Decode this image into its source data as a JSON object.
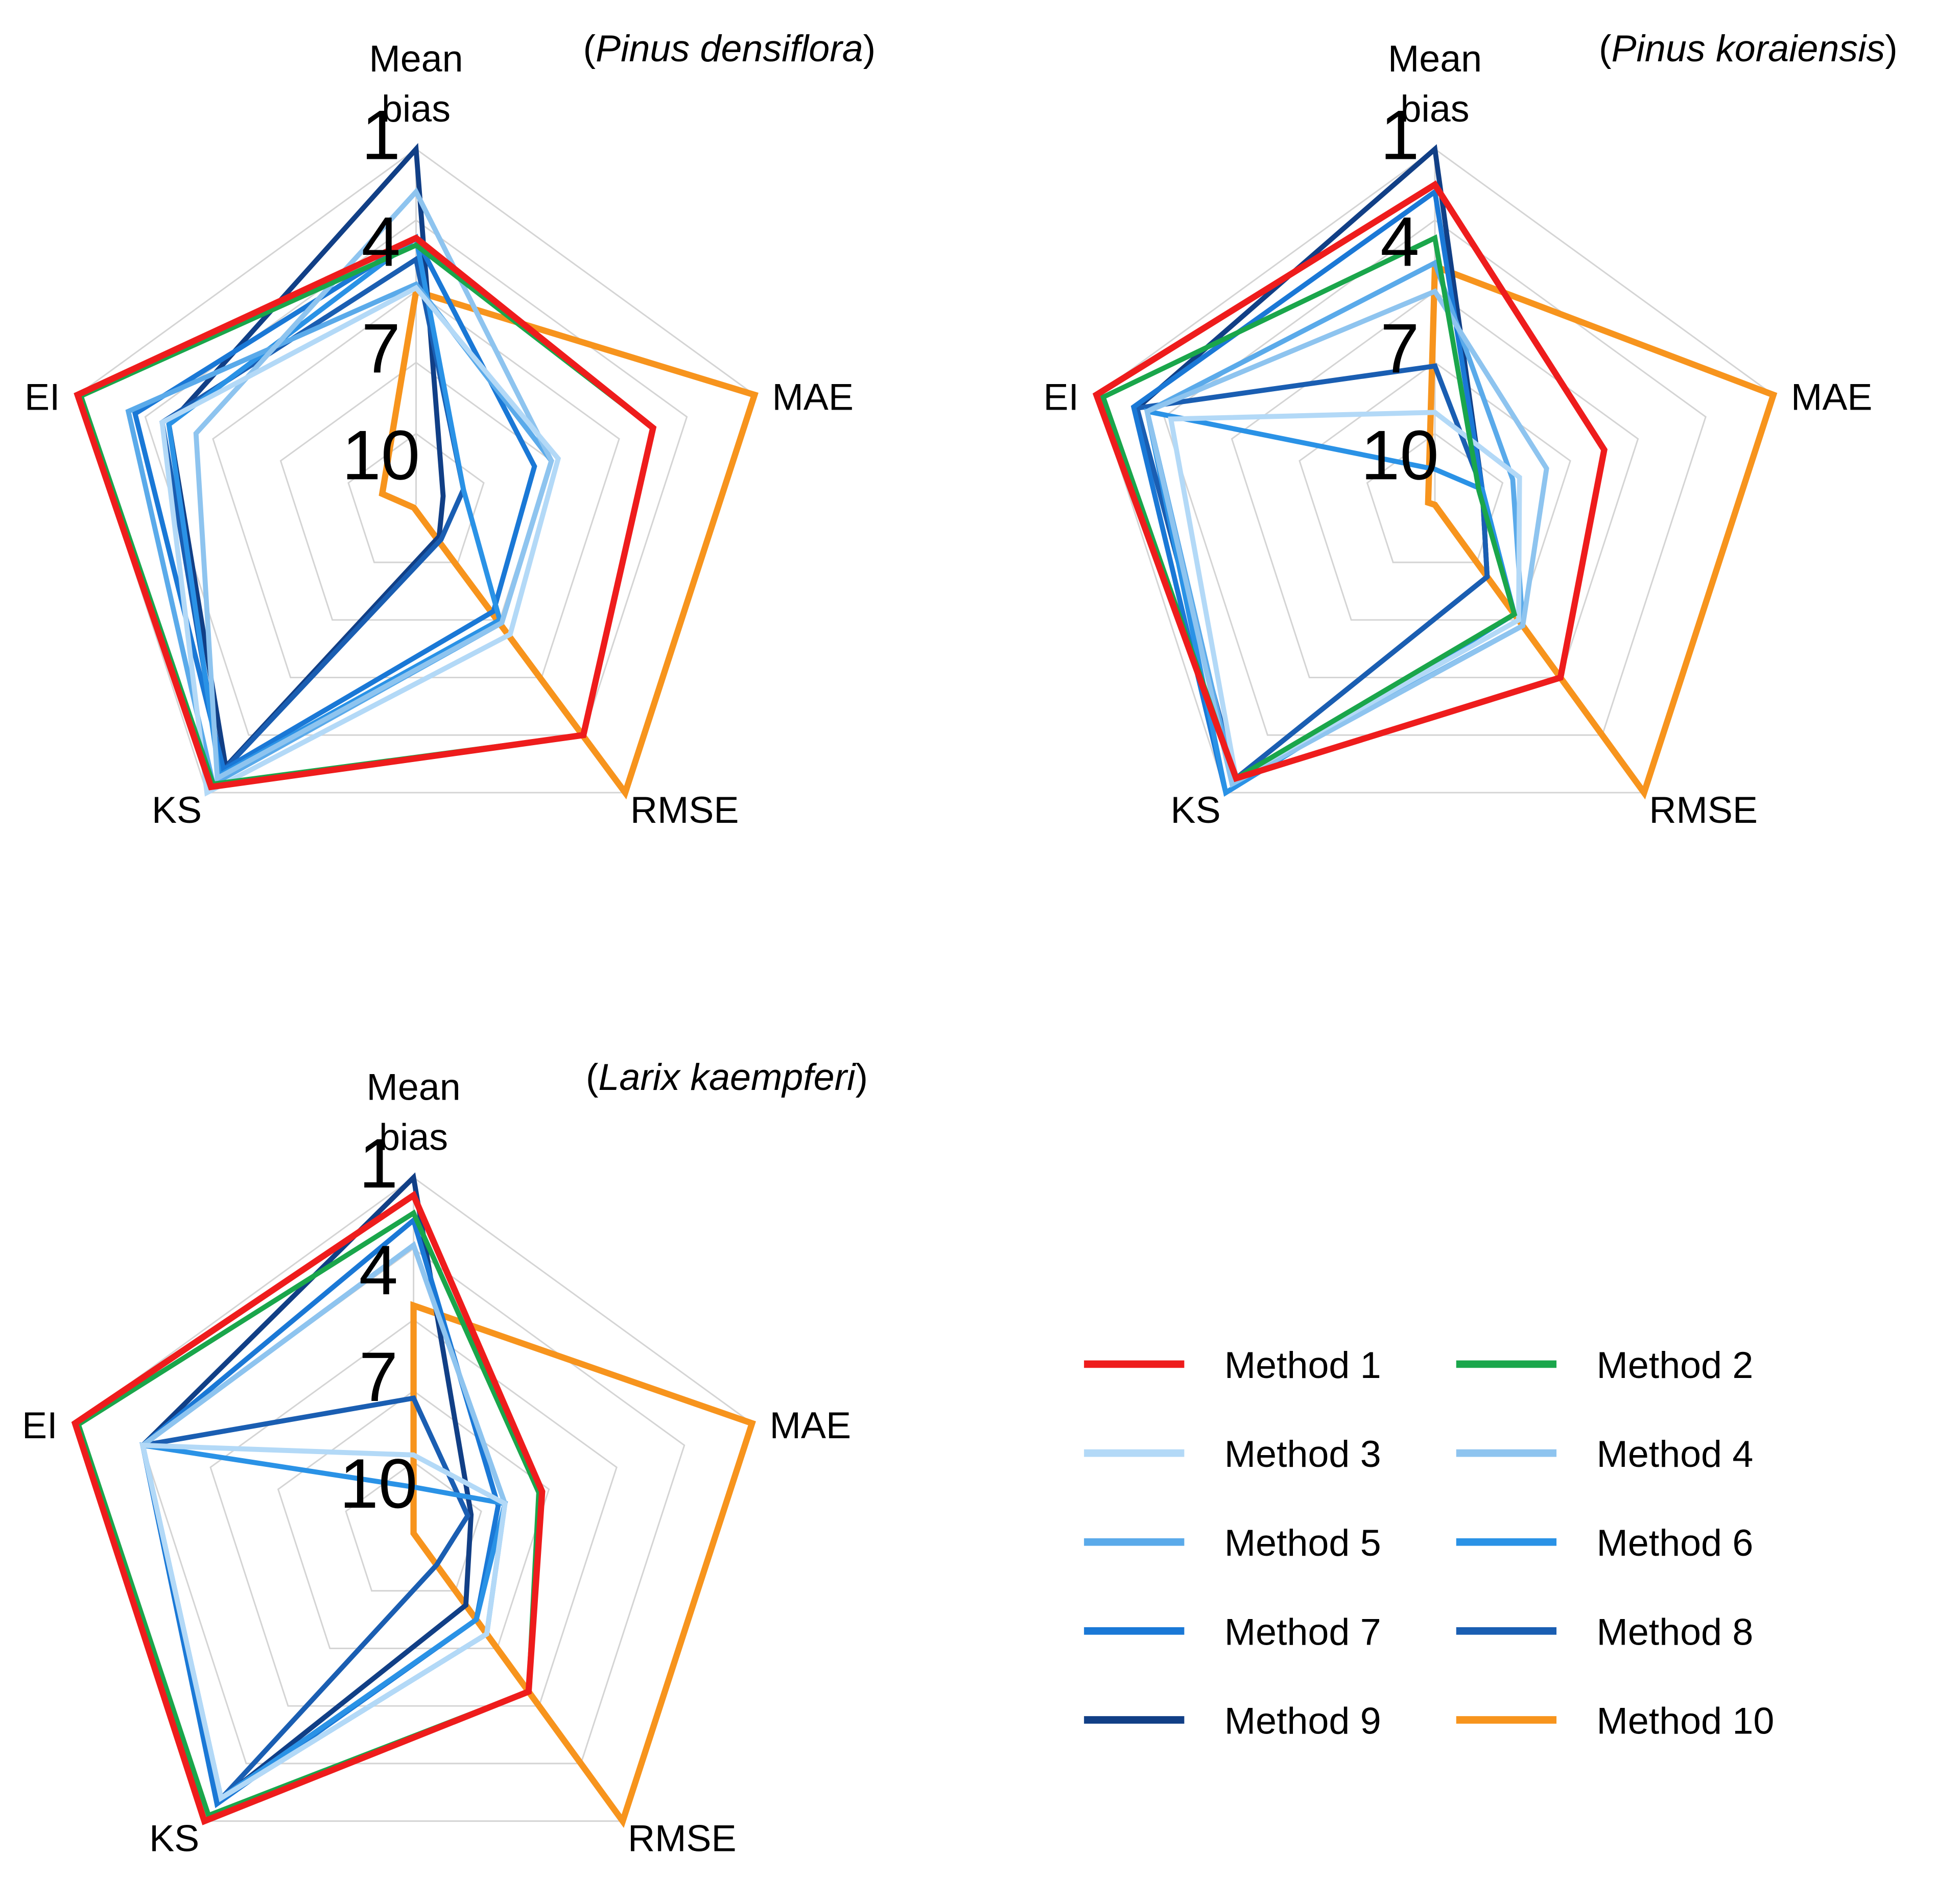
{
  "figure": {
    "source_width": 1564,
    "source_height": 1500
  },
  "chart_data": [
    {
      "type": "radar",
      "title_prefix": "(",
      "title_species": "Pinus densiflora",
      "title_suffix": ")",
      "axes": [
        "Mean bias",
        "MAE",
        "RMSE",
        "KS",
        "EI"
      ],
      "axis_label_lines": [
        [
          "Mean",
          "bias"
        ],
        [
          "MAE"
        ],
        [
          "RMSE"
        ],
        [
          "KS"
        ],
        [
          "EI"
        ]
      ],
      "rank_scale": {
        "center": 11,
        "outer": 1,
        "ticks": [
          1,
          4,
          7,
          10
        ]
      },
      "series": [
        {
          "name": "Method 1",
          "values": [
            3.5,
            4.0,
            3.0,
            1.2,
            1.0
          ]
        },
        {
          "name": "Method 2",
          "values": [
            3.7,
            4.0,
            3.0,
            1.3,
            1.1
          ]
        },
        {
          "name": "Method 3",
          "values": [
            4.9,
            6.8,
            6.5,
            1.0,
            3.5
          ]
        },
        {
          "name": "Method 4",
          "values": [
            2.2,
            7.0,
            6.9,
            1.5,
            4.5
          ]
        },
        {
          "name": "Method 5",
          "values": [
            4.8,
            7.0,
            6.9,
            1.3,
            2.5
          ]
        },
        {
          "name": "Method 6",
          "values": [
            3.5,
            9.6,
            7.0,
            1.6,
            3.7
          ]
        },
        {
          "name": "Method 7",
          "values": [
            3.5,
            7.5,
            7.3,
            1.8,
            2.7
          ]
        },
        {
          "name": "Method 8",
          "values": [
            4.1,
            9.6,
            9.8,
            1.7,
            3.5
          ]
        },
        {
          "name": "Method 9",
          "values": [
            1.0,
            10.2,
            9.9,
            1.9,
            3.7
          ]
        },
        {
          "name": "Method 10",
          "values": [
            5.0,
            1.0,
            1.0,
            10.9,
            10.0
          ]
        }
      ]
    },
    {
      "type": "radar",
      "title_prefix": "(",
      "title_species": "Pinus koraiensis",
      "title_suffix": ")",
      "axes": [
        "Mean bias",
        "MAE",
        "RMSE",
        "KS",
        "EI"
      ],
      "axis_label_lines": [
        [
          "Mean",
          "bias"
        ],
        [
          "MAE"
        ],
        [
          "RMSE"
        ],
        [
          "KS"
        ],
        [
          "EI"
        ]
      ],
      "rank_scale": {
        "center": 11,
        "outer": 1,
        "ticks": [
          1,
          4,
          7,
          10
        ]
      },
      "series": [
        {
          "name": "Method 1",
          "values": [
            2.0,
            6.0,
            5.0,
            1.5,
            1.0
          ]
        },
        {
          "name": "Method 2",
          "values": [
            3.5,
            9.7,
            7.2,
            1.5,
            1.2
          ]
        },
        {
          "name": "Method 3",
          "values": [
            8.4,
            8.5,
            7.0,
            1.5,
            3.2
          ]
        },
        {
          "name": "Method 4",
          "values": [
            5.0,
            7.7,
            6.8,
            1.3,
            2.5
          ]
        },
        {
          "name": "Method 5",
          "values": [
            4.2,
            8.7,
            6.8,
            1.4,
            2.5
          ]
        },
        {
          "name": "Method 6",
          "values": [
            10.0,
            9.6,
            7.2,
            1.0,
            2.5
          ]
        },
        {
          "name": "Method 7",
          "values": [
            2.2,
            9.6,
            7.2,
            1.0,
            2.1
          ]
        },
        {
          "name": "Method 8",
          "values": [
            7.1,
            9.6,
            8.5,
            1.5,
            2.2
          ]
        },
        {
          "name": "Method 9",
          "values": [
            1.0,
            9.6,
            8.5,
            1.5,
            2.2
          ]
        },
        {
          "name": "Method 10",
          "values": [
            4.3,
            1.0,
            1.0,
            11.0,
            10.8
          ]
        }
      ]
    },
    {
      "type": "radar",
      "title_prefix": "(",
      "title_species": "Larix kaempferi",
      "title_suffix": ")",
      "axes": [
        "Mean bias",
        "MAE",
        "RMSE",
        "KS",
        "EI"
      ],
      "axis_label_lines": [
        [
          "Mean",
          "bias"
        ],
        [
          "MAE"
        ],
        [
          "RMSE"
        ],
        [
          "KS"
        ],
        [
          "EI"
        ]
      ],
      "rank_scale": {
        "center": 11,
        "outer": 1,
        "ticks": [
          1,
          4,
          7,
          10
        ]
      },
      "series": [
        {
          "name": "Method 1",
          "values": [
            1.5,
            7.2,
            5.5,
            1.0,
            1.0
          ]
        },
        {
          "name": "Method 2",
          "values": [
            2.0,
            7.3,
            5.5,
            1.2,
            1.1
          ]
        },
        {
          "name": "Method 3",
          "values": [
            8.8,
            8.3,
            7.5,
            1.8,
            3.0
          ]
        },
        {
          "name": "Method 4",
          "values": [
            2.9,
            8.3,
            7.5,
            1.8,
            3.0
          ]
        },
        {
          "name": "Method 5",
          "values": [
            2.9,
            8.3,
            7.5,
            1.8,
            3.0
          ]
        },
        {
          "name": "Method 6",
          "values": [
            9.7,
            8.3,
            8.0,
            1.8,
            3.0
          ]
        },
        {
          "name": "Method 7",
          "values": [
            2.2,
            8.5,
            8.0,
            1.6,
            3.0
          ]
        },
        {
          "name": "Method 8",
          "values": [
            7.2,
            9.4,
            9.9,
            1.7,
            3.0
          ]
        },
        {
          "name": "Method 9",
          "values": [
            1.0,
            9.3,
            8.5,
            1.7,
            3.0
          ]
        },
        {
          "name": "Method 10",
          "values": [
            4.6,
            1.0,
            1.0,
            11.0,
            11.0
          ]
        }
      ]
    }
  ],
  "legend": {
    "items": [
      {
        "label": "Method 1",
        "color": "#ee1c1c"
      },
      {
        "label": "Method 2",
        "color": "#1aa64b"
      },
      {
        "label": "Method 3",
        "color": "#b3d9f7"
      },
      {
        "label": "Method 4",
        "color": "#8ec4ef"
      },
      {
        "label": "Method 5",
        "color": "#5aaaea"
      },
      {
        "label": "Method 6",
        "color": "#2a92e6"
      },
      {
        "label": "Method 7",
        "color": "#1a78d6"
      },
      {
        "label": "Method 8",
        "color": "#1a5eb2"
      },
      {
        "label": "Method 9",
        "color": "#113f86"
      },
      {
        "label": "Method 10",
        "color": "#f7941d"
      }
    ]
  },
  "colors": {
    "grid": "#d4d4d4",
    "background": "#ffffff"
  }
}
